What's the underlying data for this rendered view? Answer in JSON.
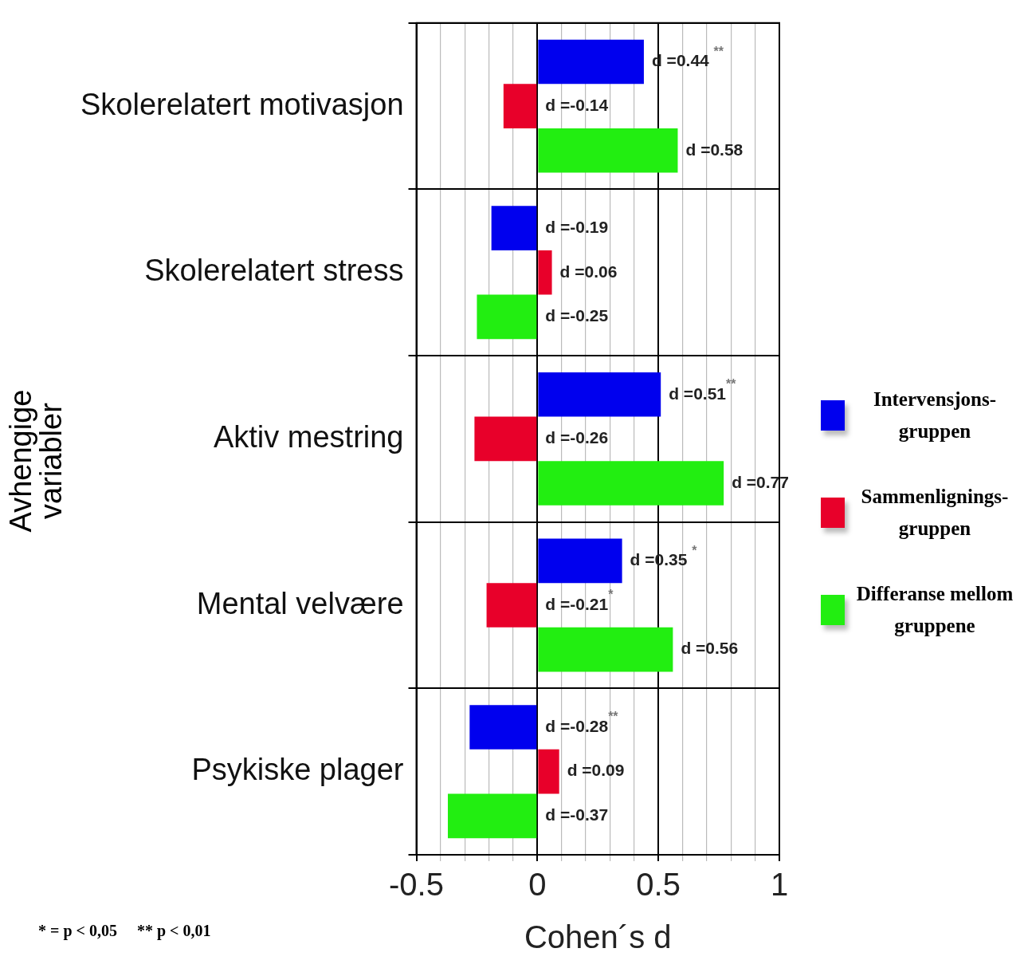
{
  "chart_data": {
    "type": "bar",
    "orientation": "horizontal",
    "xlabel": "Cohen´s d",
    "ylabel": "Avhengige variabler",
    "categories": [
      "Skolerelatert motivasjon",
      "Skolerelatert stress",
      "Aktiv mestring",
      "Mental velvære",
      "Psykiske plager"
    ],
    "series": [
      {
        "name": "Intervensjons-gruppen",
        "color": "#0000ee",
        "values": [
          0.44,
          -0.19,
          0.51,
          0.35,
          -0.28
        ],
        "value_labels": [
          "d =0.44 $^{**}$",
          "d =-0.19",
          "d =0.51$^{**}$",
          "d =0.35 $^{*}$",
          "d =-0.28$^{**}$"
        ]
      },
      {
        "name": "Sammenlignings-gruppen",
        "color": "#e8002a",
        "values": [
          -0.14,
          0.06,
          -0.26,
          -0.21,
          0.09
        ],
        "value_labels": [
          "d =-0.14",
          "d =0.06",
          "d =-0.26",
          "d =-0.21$^{*}$",
          "d =0.09"
        ]
      },
      {
        "name": "Differanse mellom gruppene",
        "color": "#22ee11",
        "values": [
          0.58,
          -0.25,
          0.77,
          0.56,
          -0.37
        ],
        "value_labels": [
          "d =0.58",
          "d =-0.25",
          "d =0.77",
          "d =0.56",
          "d =-0.37"
        ]
      }
    ],
    "xlim": [
      -0.5,
      1
    ],
    "xticks": [
      -0.5,
      {
        "value": -0.4,
        "label": null
      },
      {
        "value": -0.3,
        "label": null
      },
      {
        "value": -0.2,
        "label": null
      },
      {
        "value": -0.1,
        "label": null
      },
      0,
      {
        "value": 0.1,
        "label": null
      },
      {
        "value": 0.2,
        "label": null
      },
      {
        "value": 0.3,
        "label": null
      },
      {
        "value": 0.4,
        "label": null
      },
      0.5,
      {
        "value": 0.6,
        "label": null
      },
      {
        "value": 0.7,
        "label": null
      },
      {
        "value": 0.8,
        "label": null
      },
      {
        "value": 0.9,
        "label": null
      },
      1
    ],
    "grid": true,
    "legend": "right",
    "annotations": [
      "* = p < 0,05     ** p < 0,01"
    ]
  }
}
